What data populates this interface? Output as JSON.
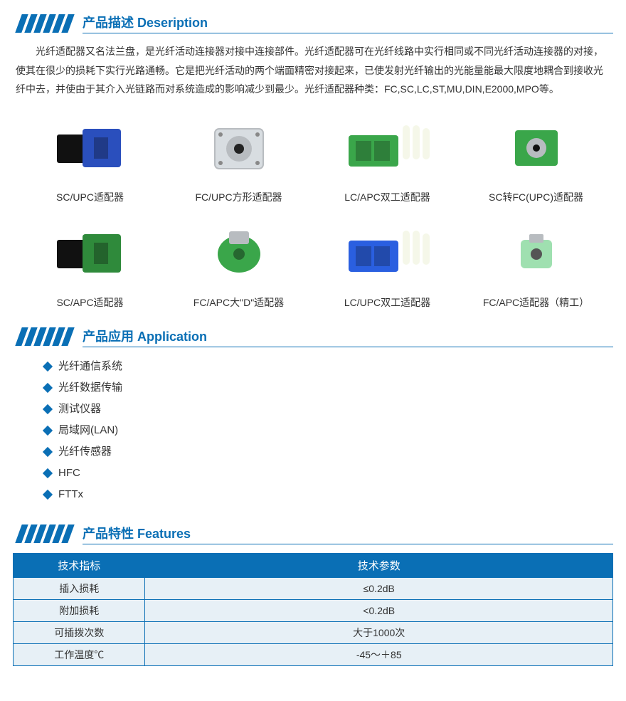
{
  "sections": {
    "description": {
      "title": "产品描述  Deseription",
      "body": "光纤适配器又名法兰盘，是光纤活动连接器对接中连接部件。光纤适配器可在光纤线路中实行相同或不同光纤活动连接器的对接，使其在很少的损耗下实行光路通畅。它是把光纤活动的两个端面精密对接起来，已使发射光纤输出的光能量能最大限度地耦合到接收光纤中去，并使由于其介入光链路而对系统造成的影响减少到最少。光纤适配器种类：FC,SC,LC,ST,MU,DIN,E2000,MPO等。"
    },
    "application": {
      "title": "产品应用  Application",
      "items": [
        "光纤通信系统",
        "光纤数据传输",
        "测试仪器",
        "局域网(LAN)",
        "光纤传感器",
        "HFC",
        "FTTx"
      ]
    },
    "features": {
      "title": "产品特性  Features",
      "table": {
        "headers": [
          "技术指标",
          "技术参数"
        ],
        "rows": [
          [
            "插入损耗",
            "≤0.2dB"
          ],
          [
            "附加损耗",
            "<0.2dB"
          ],
          [
            "可插拨次数",
            "大于1000次"
          ],
          [
            "工作温度℃",
            "-45～＋85"
          ]
        ]
      }
    }
  },
  "products": [
    {
      "label": "SC/UPC适配器",
      "colors": [
        "#111111",
        "#2a4fbd"
      ],
      "shape": "sc"
    },
    {
      "label": "FC/UPC方形适配器",
      "colors": [
        "#b8bcc0",
        "#d8dde1"
      ],
      "shape": "fc-square"
    },
    {
      "label": "LC/APC双工适配器",
      "colors": [
        "#3aa64a",
        "#f5f7e9"
      ],
      "shape": "lc-duplex"
    },
    {
      "label": "SC转FC(UPC)适配器",
      "colors": [
        "#3aa64a",
        "#b8bcc0"
      ],
      "shape": "sc-fc"
    },
    {
      "label": "SC/APC适配器",
      "colors": [
        "#111111",
        "#2f8a3b"
      ],
      "shape": "sc"
    },
    {
      "label": "FC/APC大\"D\"适配器",
      "colors": [
        "#3aa64a",
        "#b8bcc0"
      ],
      "shape": "fc-d"
    },
    {
      "label": "LC/UPC双工适配器",
      "colors": [
        "#2a5fe0",
        "#f5f7e9"
      ],
      "shape": "lc-duplex"
    },
    {
      "label": "FC/APC适配器（精工）",
      "colors": [
        "#9fe0b0",
        "#b8bcc0"
      ],
      "shape": "fc-round"
    }
  ],
  "theme": {
    "accent": "#0a6fb5",
    "table_row_bg": "#e7f0f6"
  }
}
